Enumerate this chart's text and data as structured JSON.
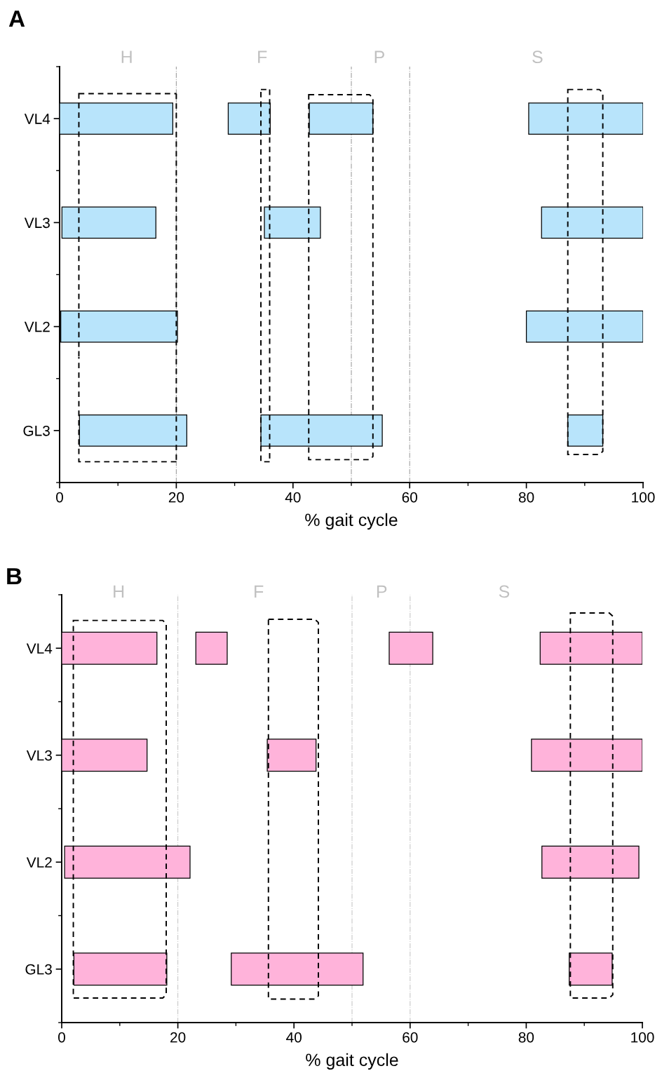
{
  "chart_data": [
    {
      "type": "bar",
      "orientation": "horizontal",
      "categories": [
        "VL4",
        "VL3",
        "VL2",
        "GL3"
      ],
      "xlabel": "% gait cycle",
      "xlim": [
        0,
        100
      ],
      "xticks": [
        0,
        20,
        40,
        60,
        80,
        100
      ],
      "grid": false,
      "series": [
        {
          "color": "#b8e4fb",
          "base": [
            0,
            0.4,
            0.2,
            3.4
          ],
          "values": [
            19.4,
            16.1,
            20.0,
            18.4
          ]
        },
        {
          "color": "#b8e4fb",
          "base": [
            28.9,
            35.1,
            null,
            34.5
          ],
          "values": [
            7.2,
            9.6,
            null,
            20.8
          ]
        },
        {
          "color": "#b8e4fb",
          "base": [
            42.8,
            null,
            null,
            null
          ],
          "values": [
            10.9,
            null,
            null,
            null
          ]
        },
        {
          "color": "#b8e4fb",
          "base": [
            80.4,
            82.6,
            80.0,
            87.1
          ],
          "values": [
            19.6,
            17.4,
            20.0,
            6.0
          ]
        }
      ],
      "ref_lines": [
        {
          "axis": "x",
          "value": 20,
          "color": "#a0a0a0",
          "line_style": "dashdot"
        },
        {
          "axis": "x",
          "value": 50,
          "color": "#a0a0a0",
          "line_style": "dashdot"
        },
        {
          "axis": "x",
          "value": 60,
          "color": "#a0a0a0",
          "line_style": "dashdot"
        }
      ],
      "annotations": [
        "A",
        "H",
        "F",
        "P",
        "S"
      ]
    },
    {
      "type": "bar",
      "orientation": "horizontal",
      "categories": [
        "VL4",
        "VL3",
        "VL2",
        "GL3"
      ],
      "xlabel": "% gait cycle",
      "xlim": [
        0,
        100
      ],
      "xticks": [
        0,
        20,
        40,
        60,
        80,
        100
      ],
      "grid": false,
      "series": [
        {
          "color": "#ffb3da",
          "base": [
            0,
            0,
            0.5,
            2.1
          ],
          "values": [
            16.4,
            14.7,
            21.6,
            16.0
          ]
        },
        {
          "color": "#ffb3da",
          "base": [
            23.1,
            35.4,
            null,
            29.2
          ],
          "values": [
            5.4,
            8.4,
            null,
            22.7
          ]
        },
        {
          "color": "#ffb3da",
          "base": [
            56.4,
            null,
            null,
            null
          ],
          "values": [
            7.5,
            null,
            null,
            null
          ]
        },
        {
          "color": "#ffb3da",
          "base": [
            82.4,
            80.9,
            82.7,
            87.4
          ],
          "values": [
            17.6,
            19.1,
            16.7,
            7.4
          ]
        }
      ],
      "ref_lines": [
        {
          "axis": "x",
          "value": 20,
          "color": "#c8c8c8",
          "line_style": "dashdot"
        },
        {
          "axis": "x",
          "value": 50,
          "color": "#c8c8c8",
          "line_style": "dashdot"
        },
        {
          "axis": "x",
          "value": 60,
          "color": "#c8c8c8",
          "line_style": "dashdot"
        }
      ],
      "annotations": [
        "B",
        "H",
        "F",
        "P",
        "S"
      ]
    }
  ]
}
